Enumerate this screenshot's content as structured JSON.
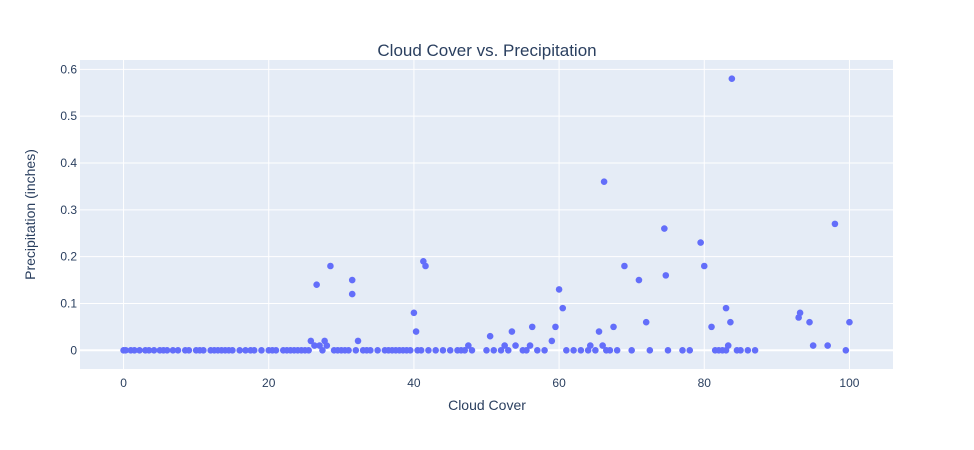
{
  "chart_data": {
    "type": "scatter",
    "title": "Cloud Cover vs. Precipitation",
    "xlabel": "Cloud Cover",
    "ylabel": "Precipitation (inches)",
    "xlim": [
      -6,
      106
    ],
    "ylim": [
      -0.04,
      0.62
    ],
    "xticks": [
      0,
      20,
      40,
      60,
      80,
      100
    ],
    "yticks": [
      0,
      0.1,
      0.2,
      0.3,
      0.4,
      0.5,
      0.6
    ],
    "grid": true,
    "marker_color": "#636efa",
    "plot_background": "#e5ecf6",
    "points": [
      [
        0,
        0
      ],
      [
        0.3,
        0
      ],
      [
        1,
        0
      ],
      [
        1.5,
        0
      ],
      [
        2.2,
        0
      ],
      [
        3,
        0
      ],
      [
        3.5,
        0
      ],
      [
        4.2,
        0
      ],
      [
        5,
        0
      ],
      [
        5.5,
        0
      ],
      [
        6,
        0
      ],
      [
        6.8,
        0
      ],
      [
        7.5,
        0
      ],
      [
        8.5,
        0
      ],
      [
        9,
        0
      ],
      [
        10,
        0
      ],
      [
        10.5,
        0
      ],
      [
        11,
        0
      ],
      [
        12,
        0
      ],
      [
        12.5,
        0
      ],
      [
        13,
        0
      ],
      [
        13.5,
        0
      ],
      [
        14,
        0
      ],
      [
        14.5,
        0
      ],
      [
        15,
        0
      ],
      [
        16,
        0
      ],
      [
        16.8,
        0
      ],
      [
        17.5,
        0
      ],
      [
        18,
        0
      ],
      [
        19,
        0
      ],
      [
        20,
        0
      ],
      [
        20.5,
        0
      ],
      [
        21,
        0
      ],
      [
        22,
        0
      ],
      [
        22.5,
        0
      ],
      [
        23,
        0
      ],
      [
        23.5,
        0
      ],
      [
        24,
        0
      ],
      [
        24.5,
        0
      ],
      [
        25,
        0
      ],
      [
        25.5,
        0
      ],
      [
        25.8,
        0.02
      ],
      [
        26.3,
        0.01
      ],
      [
        26.6,
        0.14
      ],
      [
        27,
        0.01
      ],
      [
        27.4,
        0
      ],
      [
        27.7,
        0.02
      ],
      [
        28,
        0.01
      ],
      [
        28.5,
        0.18
      ],
      [
        29,
        0
      ],
      [
        29.5,
        0
      ],
      [
        30,
        0
      ],
      [
        30.5,
        0
      ],
      [
        31,
        0
      ],
      [
        31.5,
        0.15
      ],
      [
        31.5,
        0.12
      ],
      [
        32,
        0
      ],
      [
        32.3,
        0.02
      ],
      [
        33,
        0
      ],
      [
        33.5,
        0
      ],
      [
        34,
        0
      ],
      [
        35,
        0
      ],
      [
        36,
        0
      ],
      [
        36.5,
        0
      ],
      [
        37,
        0
      ],
      [
        37.5,
        0
      ],
      [
        38,
        0
      ],
      [
        38.5,
        0
      ],
      [
        39,
        0
      ],
      [
        39.5,
        0
      ],
      [
        40,
        0.08
      ],
      [
        40.3,
        0.04
      ],
      [
        40.5,
        0
      ],
      [
        41,
        0
      ],
      [
        41.3,
        0.19
      ],
      [
        41.6,
        0.18
      ],
      [
        42,
        0
      ],
      [
        43,
        0
      ],
      [
        44,
        0
      ],
      [
        45,
        0
      ],
      [
        46,
        0
      ],
      [
        46.5,
        0
      ],
      [
        47,
        0
      ],
      [
        47.5,
        0.01
      ],
      [
        48,
        0
      ],
      [
        50,
        0
      ],
      [
        50.5,
        0.03
      ],
      [
        51,
        0
      ],
      [
        52,
        0
      ],
      [
        52.5,
        0.01
      ],
      [
        53,
        0
      ],
      [
        53.5,
        0.04
      ],
      [
        54,
        0.01
      ],
      [
        55,
        0
      ],
      [
        55.5,
        0
      ],
      [
        56,
        0.01
      ],
      [
        56.3,
        0.05
      ],
      [
        57,
        0
      ],
      [
        58,
        0
      ],
      [
        59,
        0.02
      ],
      [
        59.5,
        0.05
      ],
      [
        60,
        0.13
      ],
      [
        60.5,
        0.09
      ],
      [
        61,
        0
      ],
      [
        62,
        0
      ],
      [
        63,
        0
      ],
      [
        64,
        0
      ],
      [
        64.3,
        0.01
      ],
      [
        65,
        0
      ],
      [
        65.5,
        0.04
      ],
      [
        66,
        0.01
      ],
      [
        66.2,
        0.36
      ],
      [
        66.5,
        0
      ],
      [
        67,
        0
      ],
      [
        67.5,
        0.05
      ],
      [
        68,
        0
      ],
      [
        69,
        0.18
      ],
      [
        70,
        0
      ],
      [
        71,
        0.15
      ],
      [
        72,
        0.06
      ],
      [
        72.5,
        0
      ],
      [
        74.5,
        0.26
      ],
      [
        74.7,
        0.16
      ],
      [
        75,
        0
      ],
      [
        77,
        0
      ],
      [
        78,
        0
      ],
      [
        79.5,
        0.23
      ],
      [
        80,
        0.18
      ],
      [
        81,
        0.05
      ],
      [
        81.5,
        0
      ],
      [
        82,
        0
      ],
      [
        82.5,
        0
      ],
      [
        83,
        0.09
      ],
      [
        83,
        0
      ],
      [
        83.3,
        0.01
      ],
      [
        83.6,
        0.06
      ],
      [
        83.8,
        0.58
      ],
      [
        84.5,
        0
      ],
      [
        85,
        0
      ],
      [
        86,
        0
      ],
      [
        87,
        0
      ],
      [
        93,
        0.07
      ],
      [
        93.2,
        0.08
      ],
      [
        94.5,
        0.06
      ],
      [
        95,
        0.01
      ],
      [
        97,
        0.01
      ],
      [
        98,
        0.27
      ],
      [
        99.5,
        0
      ],
      [
        100,
        0.06
      ]
    ]
  }
}
